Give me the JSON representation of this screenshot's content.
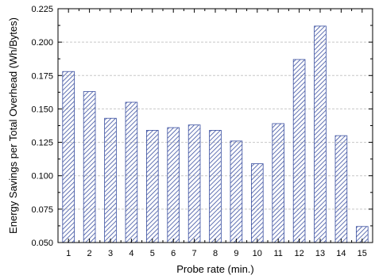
{
  "chart_data": {
    "type": "bar",
    "categories": [
      "1",
      "2",
      "3",
      "4",
      "5",
      "6",
      "7",
      "8",
      "9",
      "10",
      "11",
      "12",
      "13",
      "14",
      "15"
    ],
    "values": [
      0.178,
      0.163,
      0.143,
      0.155,
      0.134,
      0.136,
      0.138,
      0.134,
      0.126,
      0.109,
      0.139,
      0.187,
      0.212,
      0.13,
      0.062
    ],
    "title": "",
    "xlabel": "Probe rate (min.)",
    "ylabel": "Energy Savings per Total Overhead (Wh/Bytes)",
    "ylim": [
      0.05,
      0.225
    ],
    "yticks": [
      "0.050",
      "0.075",
      "0.100",
      "0.125",
      "0.150",
      "0.175",
      "0.200",
      "0.225"
    ],
    "grid": true,
    "bar_color": "#3a4fa0",
    "bar_fill": "diagonal-hatch",
    "legend": "none"
  }
}
